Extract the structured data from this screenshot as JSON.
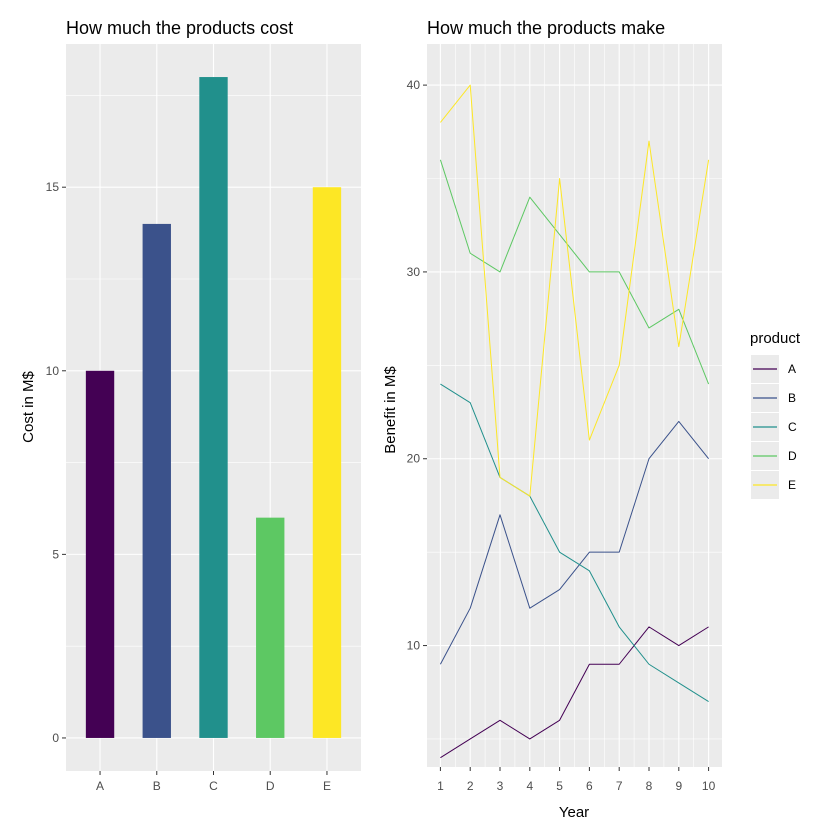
{
  "colors": {
    "panel_background": "#ebebeb",
    "grid_major": "#ffffff",
    "tick_color": "#333333"
  },
  "chart_data": [
    {
      "type": "bar",
      "title": "How much the products cost",
      "xlabel": "",
      "ylabel": "Cost in M$",
      "categories": [
        "A",
        "B",
        "C",
        "D",
        "E"
      ],
      "values": [
        10,
        14,
        18,
        6,
        15
      ],
      "colors": [
        "#440154",
        "#3b528b",
        "#21908c",
        "#5dc863",
        "#fde725"
      ],
      "ylim": [
        -0.9,
        18.9
      ],
      "yticks": [
        0,
        5,
        10,
        15
      ],
      "grid": true
    },
    {
      "type": "line",
      "title": "How much the products make",
      "xlabel": "Year",
      "ylabel": "Benefit in M$",
      "x": [
        1,
        2,
        3,
        4,
        5,
        6,
        7,
        8,
        9,
        10
      ],
      "xlim": [
        0.55,
        10.45
      ],
      "ylim": [
        3.5,
        42.2
      ],
      "yticks": [
        10,
        20,
        30,
        40
      ],
      "grid": true,
      "legend": {
        "title": "product",
        "position": "right"
      },
      "series": [
        {
          "name": "A",
          "color": "#440154",
          "values": [
            4,
            5,
            6,
            5,
            6,
            9,
            9,
            11,
            10,
            11
          ]
        },
        {
          "name": "B",
          "color": "#3b528b",
          "values": [
            9,
            12,
            17,
            12,
            13,
            15,
            15,
            20,
            22,
            20
          ]
        },
        {
          "name": "C",
          "color": "#21908c",
          "values": [
            24,
            23,
            19,
            18,
            15,
            14,
            11,
            9,
            8,
            7
          ]
        },
        {
          "name": "D",
          "color": "#5dc863",
          "values": [
            36,
            31,
            30,
            34,
            32,
            30,
            30,
            27,
            28,
            24
          ]
        },
        {
          "name": "E",
          "color": "#fde725",
          "values": [
            38,
            40,
            19,
            18,
            35,
            21,
            25,
            37,
            26,
            36
          ]
        }
      ]
    }
  ]
}
